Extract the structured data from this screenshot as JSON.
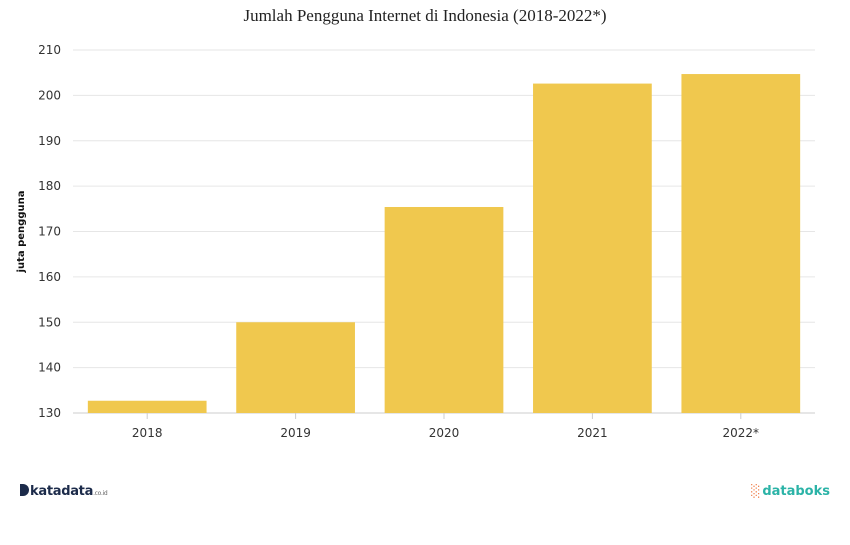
{
  "chart_data": {
    "type": "bar",
    "title": "Jumlah Pengguna Internet di Indonesia (2018-2022*)",
    "ylabel": "juta pengguna",
    "xlabel": "",
    "categories": [
      "2018",
      "2019",
      "2020",
      "2021",
      "2022*"
    ],
    "values": [
      132.7,
      150.0,
      175.4,
      202.6,
      204.7
    ],
    "ylim": [
      130,
      210
    ],
    "yticks": [
      130,
      140,
      150,
      160,
      170,
      180,
      190,
      200,
      210
    ],
    "grid": true,
    "bar_color": "#f0c84e",
    "legend": "none"
  },
  "footer": {
    "left_logo": "katadata",
    "left_logo_suffix": ".co.id",
    "right_logo": "databoks"
  }
}
